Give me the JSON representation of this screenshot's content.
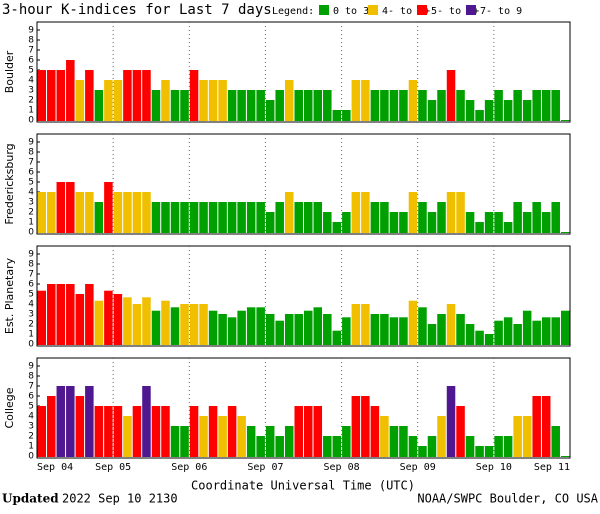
{
  "title": "3-hour K-indices for Last 7 days",
  "legend_title": "Legend:",
  "legend": [
    {
      "label": "0 to 3+",
      "color": "#00a000"
    },
    {
      "label": "4- to 4+",
      "color": "#f0c000"
    },
    {
      "label": "5- to 6+",
      "color": "#ff0000"
    },
    {
      "label": "7- to 9",
      "color": "#501890"
    }
  ],
  "x_ticks": [
    "Sep 04",
    "Sep 05",
    "Sep 06",
    "Sep 07",
    "Sep 08",
    "Sep 09",
    "Sep 10",
    "Sep 11"
  ],
  "x_label": "Coordinate Universal Time (UTC)",
  "footer": {
    "updated": "Updated",
    "date": "2022 Sep 10 2130",
    "source": "NOAA/SWPC Boulder, CO USA"
  },
  "chart_data": [
    {
      "type": "bar",
      "y_label": "Boulder",
      "ylim": [
        0,
        9
      ],
      "yticks": [
        0,
        1,
        2,
        3,
        4,
        5,
        6,
        7,
        8,
        9
      ],
      "values": [
        5,
        5,
        5,
        6,
        4,
        5,
        3,
        4,
        4,
        5,
        5,
        5,
        3,
        4,
        3,
        3,
        5,
        4,
        4,
        4,
        3,
        3,
        3,
        3,
        2,
        3,
        4,
        3,
        3,
        3,
        3,
        1,
        1,
        4,
        4,
        3,
        3,
        3,
        3,
        4,
        3,
        2,
        3,
        5,
        3,
        2,
        1,
        2,
        3,
        2,
        3,
        2,
        3,
        3,
        3,
        0
      ]
    },
    {
      "type": "bar",
      "y_label": "Fredericksburg",
      "ylim": [
        0,
        9
      ],
      "yticks": [
        0,
        1,
        2,
        3,
        4,
        5,
        6,
        7,
        8,
        9
      ],
      "values": [
        4,
        4,
        5,
        5,
        4,
        4,
        3,
        5,
        4,
        4,
        4,
        4,
        3,
        3,
        3,
        3,
        3,
        3,
        3,
        3,
        3,
        3,
        3,
        3,
        2,
        3,
        4,
        3,
        3,
        3,
        2,
        1,
        2,
        4,
        4,
        3,
        3,
        2,
        2,
        4,
        3,
        2,
        3,
        4,
        4,
        2,
        1,
        2,
        2,
        1,
        3,
        2,
        3,
        2,
        3,
        0
      ]
    },
    {
      "type": "bar",
      "y_label": "Est. Planetary",
      "ylim": [
        0,
        9
      ],
      "yticks": [
        0,
        1,
        2,
        3,
        4,
        5,
        6,
        7,
        8,
        9
      ],
      "values": [
        5.33,
        6,
        6,
        6,
        5,
        6,
        4.33,
        5.33,
        5,
        4.67,
        4,
        4.67,
        3.33,
        4.33,
        3.67,
        4,
        4,
        4,
        3.33,
        3,
        2.67,
        3.33,
        3.67,
        3.67,
        3,
        2.33,
        3,
        3,
        3.33,
        3.67,
        3,
        1.33,
        2.67,
        4,
        4,
        3,
        3,
        2.67,
        2.67,
        4.33,
        3.67,
        2,
        3,
        4,
        3,
        2,
        1.33,
        1,
        2.33,
        2.67,
        2,
        3.33,
        2.33,
        2.67,
        2.67,
        3.33
      ]
    },
    {
      "type": "bar",
      "y_label": "College",
      "ylim": [
        0,
        9
      ],
      "yticks": [
        0,
        1,
        2,
        3,
        4,
        5,
        6,
        7,
        8,
        9
      ],
      "values": [
        5,
        6,
        7,
        7,
        6,
        7,
        5,
        5,
        5,
        4,
        5,
        7,
        5,
        5,
        3,
        3,
        5,
        4,
        5,
        4,
        5,
        4,
        3,
        2,
        3,
        2,
        3,
        5,
        5,
        5,
        2,
        2,
        3,
        6,
        6,
        5,
        4,
        3,
        3,
        2,
        1,
        2,
        4,
        7,
        5,
        2,
        1,
        1,
        2,
        2,
        4,
        4,
        6,
        6,
        3,
        0
      ]
    }
  ]
}
